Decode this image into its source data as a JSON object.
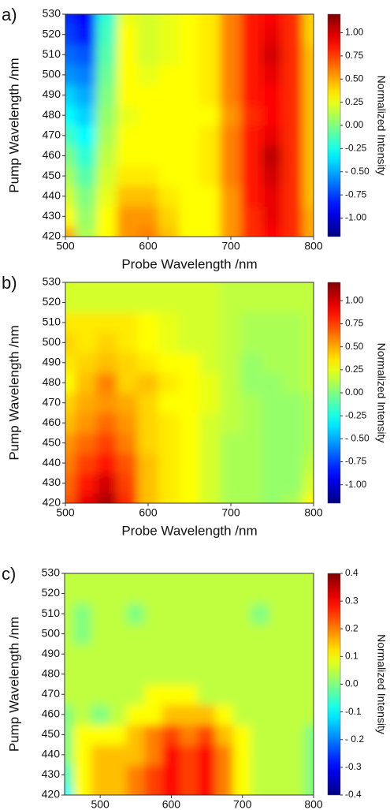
{
  "chart_data": [
    {
      "type": "heatmap",
      "panel_label": "a)",
      "x_label": "Probe Wavelength /nm",
      "y_label": "Pump Wavelength /nm",
      "colorbar_label": "Normalized Intensity",
      "x": [
        500,
        525,
        550,
        575,
        600,
        625,
        650,
        675,
        700,
        725,
        750,
        775,
        800
      ],
      "y": [
        420,
        430,
        440,
        450,
        460,
        470,
        480,
        490,
        500,
        510,
        520,
        530
      ],
      "z": [
        [
          0.5,
          0.1,
          0.3,
          0.55,
          0.6,
          0.45,
          0.3,
          0.3,
          0.55,
          0.8,
          0.9,
          0.8,
          0.5
        ],
        [
          0.3,
          0.05,
          0.3,
          0.55,
          0.55,
          0.4,
          0.3,
          0.3,
          0.55,
          0.8,
          0.95,
          0.8,
          0.5
        ],
        [
          0.2,
          0.0,
          0.25,
          0.45,
          0.45,
          0.35,
          0.3,
          0.3,
          0.55,
          0.85,
          0.95,
          0.8,
          0.45
        ],
        [
          0.1,
          -0.1,
          0.2,
          0.35,
          0.35,
          0.3,
          0.3,
          0.35,
          0.6,
          0.85,
          1.0,
          0.8,
          0.45
        ],
        [
          0.0,
          -0.2,
          0.15,
          0.3,
          0.3,
          0.3,
          0.3,
          0.35,
          0.6,
          0.85,
          1.05,
          0.8,
          0.45
        ],
        [
          -0.15,
          -0.3,
          0.1,
          0.3,
          0.3,
          0.3,
          0.3,
          0.35,
          0.6,
          0.85,
          0.95,
          0.8,
          0.45
        ],
        [
          -0.3,
          -0.4,
          0.05,
          0.25,
          0.3,
          0.3,
          0.3,
          0.3,
          0.55,
          0.8,
          0.9,
          0.8,
          0.45
        ],
        [
          -0.4,
          -0.5,
          0.0,
          0.3,
          0.3,
          0.3,
          0.3,
          0.35,
          0.6,
          0.85,
          0.9,
          0.8,
          0.45
        ],
        [
          -0.55,
          -0.6,
          -0.05,
          0.3,
          0.25,
          0.3,
          0.3,
          0.35,
          0.6,
          0.85,
          0.95,
          0.8,
          0.45
        ],
        [
          -0.65,
          -0.7,
          -0.1,
          0.3,
          0.2,
          0.25,
          0.3,
          0.35,
          0.6,
          0.85,
          1.0,
          0.8,
          0.45
        ],
        [
          -0.75,
          -0.85,
          -0.15,
          0.3,
          0.2,
          0.25,
          0.3,
          0.35,
          0.6,
          0.85,
          0.95,
          0.8,
          0.4
        ],
        [
          -0.8,
          -0.9,
          -0.2,
          0.25,
          0.2,
          0.25,
          0.3,
          0.35,
          0.6,
          0.85,
          0.9,
          0.8,
          0.4
        ]
      ],
      "xlim": [
        500,
        800
      ],
      "ylim": [
        420,
        530
      ],
      "xticks": [
        500,
        600,
        700,
        800
      ],
      "yticks": [
        420,
        430,
        440,
        450,
        460,
        470,
        480,
        490,
        500,
        510,
        520,
        530
      ],
      "clim": [
        -1.2,
        1.2
      ],
      "cticks": [
        {
          "value": 1,
          "label": "1.00"
        },
        {
          "value": 0.75,
          "label": "0.75"
        },
        {
          "value": 0.5,
          "label": "0.50"
        },
        {
          "value": 0.25,
          "label": "0.25"
        },
        {
          "value": 0,
          "label": "0.00"
        },
        {
          "value": -0.25,
          "label": "-0.25"
        },
        {
          "value": -0.5,
          "label": "- 0.50"
        },
        {
          "value": -0.75,
          "label": "-0.75"
        },
        {
          "value": -1,
          "label": "-1.00"
        }
      ]
    },
    {
      "type": "heatmap",
      "panel_label": "b)",
      "x_label": "Probe Wavelength /nm",
      "y_label": "Pump Wavelength /nm",
      "colorbar_label": "Normalized Intensity",
      "x": [
        500,
        525,
        550,
        575,
        600,
        625,
        650,
        675,
        700,
        725,
        750,
        775,
        800
      ],
      "y": [
        420,
        430,
        440,
        450,
        460,
        470,
        480,
        490,
        500,
        510,
        520,
        530
      ],
      "z": [
        [
          0.7,
          0.95,
          1.1,
          0.8,
          0.45,
          0.35,
          0.3,
          0.2,
          0.1,
          0.1,
          0.05,
          0.1,
          0.3
        ],
        [
          0.65,
          0.85,
          1.0,
          0.75,
          0.45,
          0.35,
          0.3,
          0.2,
          0.1,
          0.1,
          0.05,
          0.05,
          0.2
        ],
        [
          0.6,
          0.75,
          0.85,
          0.7,
          0.45,
          0.35,
          0.3,
          0.2,
          0.1,
          0.1,
          0.05,
          0.05,
          0.15
        ],
        [
          0.55,
          0.65,
          0.75,
          0.6,
          0.4,
          0.35,
          0.3,
          0.2,
          0.1,
          0.1,
          0.05,
          0.05,
          0.1
        ],
        [
          0.45,
          0.55,
          0.65,
          0.55,
          0.4,
          0.35,
          0.3,
          0.2,
          0.15,
          0.1,
          0.05,
          0.05,
          0.1
        ],
        [
          0.4,
          0.5,
          0.55,
          0.5,
          0.4,
          0.3,
          0.3,
          0.25,
          0.15,
          0.1,
          0.05,
          0.05,
          0.1
        ],
        [
          0.3,
          0.45,
          0.6,
          0.4,
          0.45,
          0.35,
          0.3,
          0.25,
          0.15,
          0.05,
          0.05,
          0.1,
          0.15
        ],
        [
          0.35,
          0.4,
          0.45,
          0.4,
          0.35,
          0.3,
          0.3,
          0.2,
          0.15,
          0.05,
          0.1,
          0.1,
          0.15
        ],
        [
          0.4,
          0.35,
          0.4,
          0.35,
          0.3,
          0.25,
          0.2,
          0.2,
          0.15,
          0.1,
          0.1,
          0.1,
          0.15
        ],
        [
          0.35,
          0.35,
          0.35,
          0.35,
          0.3,
          0.25,
          0.2,
          0.2,
          0.15,
          0.1,
          0.1,
          0.1,
          0.15
        ],
        [
          0.2,
          0.2,
          0.2,
          0.2,
          0.2,
          0.2,
          0.2,
          0.2,
          0.15,
          0.15,
          0.15,
          0.15,
          0.15
        ],
        [
          0.2,
          0.2,
          0.2,
          0.2,
          0.2,
          0.2,
          0.2,
          0.2,
          0.15,
          0.15,
          0.15,
          0.15,
          0.15
        ]
      ],
      "xlim": [
        500,
        800
      ],
      "ylim": [
        420,
        530
      ],
      "xticks": [
        500,
        600,
        700,
        800
      ],
      "yticks": [
        420,
        430,
        440,
        450,
        460,
        470,
        480,
        490,
        500,
        510,
        520,
        530
      ],
      "clim": [
        -1.2,
        1.2
      ],
      "cticks": [
        {
          "value": 1,
          "label": "1.00"
        },
        {
          "value": 0.75,
          "label": "0.75"
        },
        {
          "value": 0.5,
          "label": "0.50"
        },
        {
          "value": 0.25,
          "label": "0.25"
        },
        {
          "value": 0,
          "label": "0.00"
        },
        {
          "value": -0.25,
          "label": "-0.25"
        },
        {
          "value": -0.5,
          "label": "- 0.50"
        },
        {
          "value": -0.75,
          "label": "-0.75"
        },
        {
          "value": -1,
          "label": "-1.00"
        }
      ]
    },
    {
      "type": "heatmap",
      "panel_label": "c)",
      "x_label": "Probe Wavelength /nm",
      "y_label": "Pump Wavelength /nm",
      "colorbar_label": "Normalized Intensity",
      "x": [
        450,
        475,
        500,
        525,
        550,
        575,
        600,
        625,
        650,
        675,
        700,
        725,
        750,
        775,
        800
      ],
      "y": [
        420,
        430,
        440,
        450,
        460,
        470,
        480,
        490,
        500,
        510,
        520,
        530
      ],
      "z": [
        [
          -0.1,
          0.1,
          0.15,
          0.15,
          0.2,
          0.25,
          0.3,
          0.25,
          0.3,
          0.2,
          0.1,
          0.05,
          0.05,
          0.05,
          0.0
        ],
        [
          -0.05,
          0.1,
          0.15,
          0.15,
          0.2,
          0.25,
          0.3,
          0.25,
          0.3,
          0.2,
          0.1,
          0.05,
          0.05,
          0.05,
          0.0
        ],
        [
          0.0,
          0.1,
          0.15,
          0.15,
          0.15,
          0.2,
          0.3,
          0.25,
          0.3,
          0.2,
          0.1,
          0.05,
          0.05,
          0.05,
          0.0
        ],
        [
          0.0,
          0.1,
          0.1,
          0.1,
          0.15,
          0.2,
          0.25,
          0.2,
          0.25,
          0.15,
          0.1,
          0.05,
          0.05,
          0.05,
          0.0
        ],
        [
          0.0,
          0.05,
          0.0,
          0.05,
          0.1,
          0.1,
          0.15,
          0.15,
          0.15,
          0.1,
          0.05,
          0.05,
          0.05,
          0.05,
          0.05
        ],
        [
          0.05,
          0.05,
          0.05,
          0.05,
          0.05,
          0.1,
          0.1,
          0.1,
          0.05,
          0.05,
          0.05,
          0.05,
          0.05,
          0.05,
          0.05
        ],
        [
          0.05,
          0.05,
          0.05,
          0.05,
          0.05,
          0.05,
          0.05,
          0.05,
          0.05,
          0.05,
          0.05,
          0.05,
          0.05,
          0.05,
          0.05
        ],
        [
          0.05,
          0.05,
          0.05,
          0.05,
          0.05,
          0.05,
          0.05,
          0.05,
          0.05,
          0.05,
          0.05,
          0.05,
          0.05,
          0.05,
          0.05
        ],
        [
          0.05,
          0.0,
          0.05,
          0.05,
          0.05,
          0.05,
          0.05,
          0.05,
          0.05,
          0.05,
          0.05,
          0.05,
          0.05,
          0.05,
          0.05
        ],
        [
          0.05,
          0.0,
          0.05,
          0.05,
          0.0,
          0.05,
          0.05,
          0.05,
          0.05,
          0.05,
          0.05,
          0.0,
          0.05,
          0.05,
          0.05
        ],
        [
          0.05,
          0.05,
          0.05,
          0.05,
          0.05,
          0.05,
          0.05,
          0.05,
          0.05,
          0.05,
          0.05,
          0.05,
          0.05,
          0.05,
          0.05
        ],
        [
          0.05,
          0.05,
          0.05,
          0.05,
          0.05,
          0.05,
          0.05,
          0.05,
          0.05,
          0.05,
          0.05,
          0.05,
          0.05,
          0.05,
          0.05
        ]
      ],
      "xlim": [
        450,
        800
      ],
      "ylim": [
        420,
        530
      ],
      "xticks": [
        500,
        600,
        700,
        800
      ],
      "yticks": [
        420,
        430,
        440,
        450,
        460,
        470,
        480,
        490,
        500,
        510,
        520,
        530
      ],
      "clim": [
        -0.4,
        0.4
      ],
      "cticks": [
        0.4,
        0.3,
        0.2,
        0.1,
        {
          "value": 0,
          "label": "0.0"
        },
        -0.1,
        {
          "value": -0.2,
          "label": "- 0.2"
        },
        -0.3,
        -0.4
      ]
    }
  ]
}
